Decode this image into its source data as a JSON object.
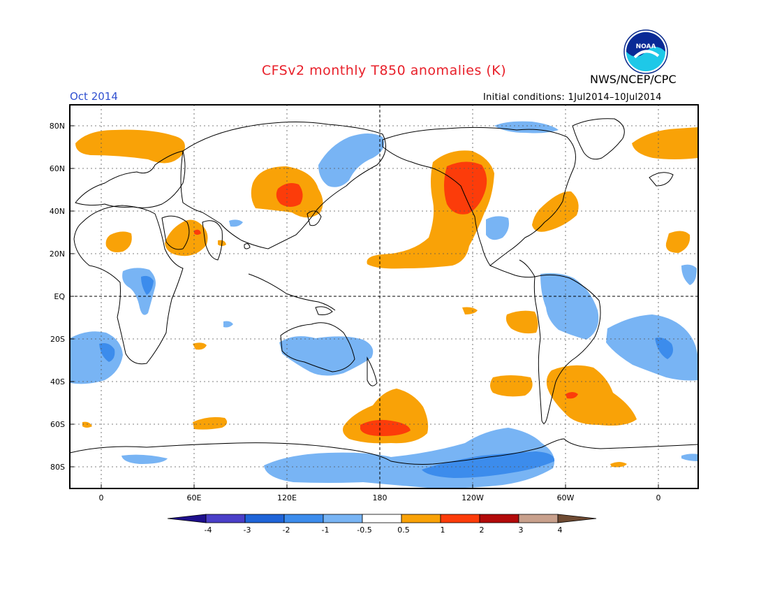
{
  "header": {
    "title": "CFSv2 monthly T850 anomalies (K)",
    "agency": "NWS/NCEP/CPC",
    "logo_text": "NOAA",
    "month": "Oct 2014",
    "initial_conditions": "Initial conditions: 1Jul2014–10Jul2014"
  },
  "map": {
    "lat_labels": [
      "80N",
      "60N",
      "40N",
      "20N",
      "EQ",
      "20S",
      "40S",
      "60S",
      "80S"
    ],
    "lon_labels": [
      "0",
      "60E",
      "120E",
      "180",
      "120W",
      "60W",
      "0"
    ],
    "grid": "dotted",
    "equator_and_dateline": "dashed"
  },
  "colorbar": {
    "labels": [
      "-4",
      "-3",
      "-2",
      "-1",
      "-0.5",
      "0.5",
      "1",
      "2",
      "3",
      "4"
    ],
    "colors": [
      "#1e0f8c",
      "#4a3fc8",
      "#1f64d8",
      "#3c8cec",
      "#78b4f4",
      "#ffffff",
      "#f9a207",
      "#fc3c0a",
      "#b20a0a",
      "#c8a08c",
      "#6e4a32"
    ]
  },
  "palette": {
    "warm_05": "#f9a207",
    "warm_1": "#fc3c0a",
    "cool_05": "#78b4f4",
    "cool_1": "#3c8cec",
    "coast": "#000000"
  }
}
